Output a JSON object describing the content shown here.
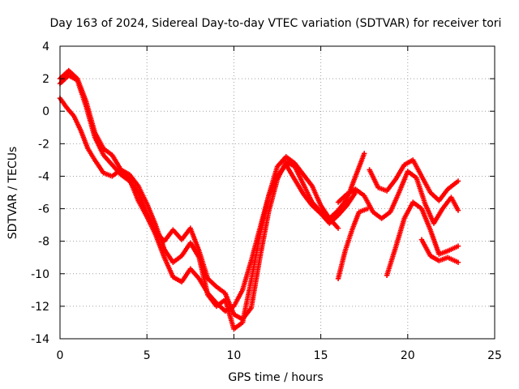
{
  "chart_data": {
    "type": "scatter",
    "title": "Day 163 of 2024, Sidereal Day-to-day VTEC variation (SDTVAR) for receiver tori",
    "xlabel": "GPS time / hours",
    "ylabel": "SDTVAR / TECUs",
    "xlim": [
      0,
      25
    ],
    "ylim": [
      -14,
      4
    ],
    "xticks": [
      0,
      5,
      10,
      15,
      20,
      25
    ],
    "yticks": [
      -14,
      -12,
      -10,
      -8,
      -6,
      -4,
      -2,
      0,
      2,
      4
    ],
    "xtick_labels": [
      "0",
      "5",
      "10",
      "15",
      "20",
      "25"
    ],
    "ytick_labels": [
      "-14",
      "-12",
      "-10",
      "-8",
      "-6",
      "-4",
      "-2",
      "0",
      "2",
      "4"
    ],
    "grid": true,
    "legend": "none",
    "marker": "plus",
    "color": "#ff0000",
    "series": [
      {
        "x": [
          0.0,
          0.4,
          0.8,
          1.2,
          1.6,
          2.0,
          2.5,
          3.0,
          3.5,
          4.0,
          4.5,
          5.0,
          5.5,
          6.0,
          6.5,
          7.0,
          7.5,
          8.0,
          8.5,
          9.0,
          9.5,
          10.0,
          10.5,
          11.0,
          11.5,
          12.0,
          12.5,
          13.0,
          13.5,
          14.0,
          14.5,
          15.0,
          15.5,
          16.0
        ],
        "y": [
          0.8,
          0.2,
          -0.3,
          -1.2,
          -2.3,
          -3.0,
          -3.8,
          -4.0,
          -3.6,
          -4.2,
          -5.5,
          -6.5,
          -7.6,
          -9.0,
          -10.2,
          -10.5,
          -9.7,
          -10.3,
          -11.2,
          -11.8,
          -12.3,
          -12.0,
          -11.0,
          -9.2,
          -7.2,
          -5.2,
          -3.4,
          -2.8,
          -3.2,
          -3.9,
          -4.6,
          -5.8,
          -6.6,
          -7.2
        ]
      },
      {
        "x": [
          0.0,
          0.5,
          1.0,
          1.5,
          2.0,
          2.5,
          3.0,
          3.5,
          4.0,
          4.5,
          5.0,
          5.5,
          6.0,
          6.5,
          7.0,
          7.5,
          8.0,
          8.5,
          9.0,
          9.5,
          10.0,
          10.5,
          11.0,
          11.5,
          12.0,
          12.5,
          13.0,
          13.5,
          14.0,
          14.5,
          15.0,
          15.5,
          16.0,
          16.5,
          17.0,
          17.5
        ],
        "y": [
          1.7,
          2.2,
          1.9,
          0.3,
          -1.6,
          -2.7,
          -3.3,
          -3.9,
          -4.3,
          -5.0,
          -6.3,
          -7.4,
          -8.0,
          -7.3,
          -7.9,
          -7.2,
          -8.6,
          -10.3,
          -10.8,
          -11.2,
          -12.5,
          -12.8,
          -12.1,
          -9.0,
          -6.2,
          -4.2,
          -3.1,
          -3.4,
          -4.5,
          -5.6,
          -6.2,
          -6.6,
          -6.1,
          -5.4,
          -4.0,
          -2.6
        ]
      },
      {
        "x": [
          0.0,
          0.5,
          1.0,
          1.5,
          2.0,
          2.5,
          3.0,
          3.5,
          4.0,
          4.5,
          5.0,
          5.5,
          6.0,
          6.5,
          7.0,
          7.5,
          8.0,
          8.5,
          9.0,
          9.5,
          10.0,
          10.5,
          11.0,
          11.5,
          12.0,
          12.5,
          13.0,
          13.5,
          14.0,
          14.5,
          15.0,
          15.5,
          16.0,
          16.5,
          17.0
        ],
        "y": [
          2.0,
          2.5,
          2.0,
          0.6,
          -1.3,
          -2.3,
          -2.7,
          -3.6,
          -3.9,
          -4.6,
          -5.7,
          -7.0,
          -8.5,
          -9.3,
          -8.9,
          -8.1,
          -9.0,
          -11.3,
          -12.0,
          -11.6,
          -13.4,
          -13.0,
          -10.4,
          -7.6,
          -5.2,
          -4.0,
          -3.3,
          -4.2,
          -5.1,
          -5.8,
          -6.3,
          -6.9,
          -6.4,
          -5.8,
          -5.0
        ]
      },
      {
        "x": [
          16.0,
          16.5,
          17.0,
          17.5,
          18.0,
          18.5,
          19.0,
          19.5,
          20.0,
          20.5,
          21.0,
          21.5,
          22.0,
          22.5,
          22.9
        ],
        "y": [
          -5.6,
          -5.1,
          -4.8,
          -5.2,
          -6.2,
          -6.6,
          -6.2,
          -5.0,
          -3.7,
          -4.1,
          -5.7,
          -6.9,
          -6.0,
          -5.3,
          -6.1
        ]
      },
      {
        "x": [
          17.8,
          18.3,
          18.8,
          19.3,
          19.8,
          20.3,
          20.8,
          21.3,
          21.8,
          22.3,
          22.9
        ],
        "y": [
          -3.6,
          -4.7,
          -4.9,
          -4.2,
          -3.3,
          -3.0,
          -4.0,
          -5.0,
          -5.5,
          -4.8,
          -4.3
        ]
      },
      {
        "x": [
          16.0,
          16.4,
          16.8,
          17.2,
          17.7
        ],
        "y": [
          -10.3,
          -8.6,
          -7.3,
          -6.2,
          -6.0
        ]
      },
      {
        "x": [
          18.8,
          19.3,
          19.8,
          20.3,
          20.8,
          21.3,
          21.8,
          22.3,
          22.9
        ],
        "y": [
          -10.1,
          -8.4,
          -6.6,
          -5.6,
          -6.0,
          -7.3,
          -8.8,
          -8.6,
          -8.3
        ]
      },
      {
        "x": [
          20.8,
          21.3,
          21.8,
          22.3,
          22.9
        ],
        "y": [
          -7.9,
          -8.9,
          -9.2,
          -9.0,
          -9.3
        ]
      }
    ]
  }
}
